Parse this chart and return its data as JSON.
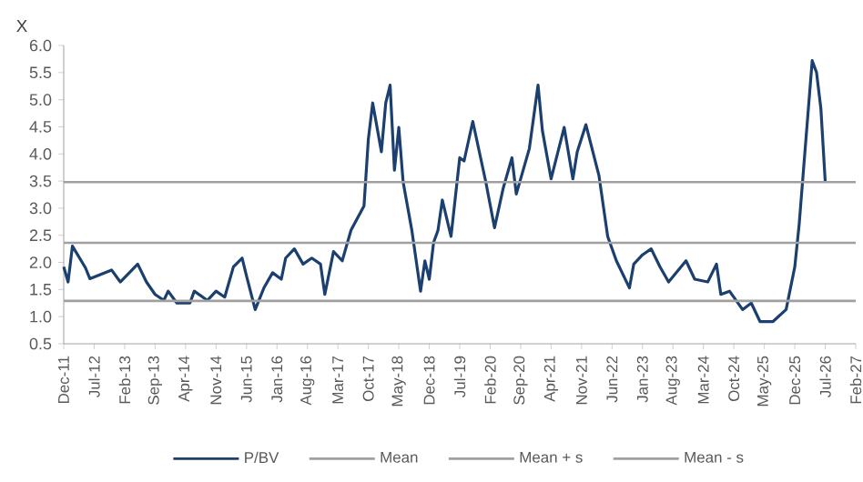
{
  "chart_data": {
    "type": "line",
    "ylabel": "X",
    "xlim": [
      "2011-12",
      "2027-02"
    ],
    "ylim": [
      0.5,
      6.0
    ],
    "yticks": [
      {
        "value": 0.5,
        "label": "0.5"
      },
      {
        "value": 1.0,
        "label": "1.0"
      },
      {
        "value": 1.5,
        "label": "1.5"
      },
      {
        "value": 2.0,
        "label": "2.0"
      },
      {
        "value": 2.5,
        "label": "2.5"
      },
      {
        "value": 3.0,
        "label": "3.0"
      },
      {
        "value": 3.5,
        "label": "3.5"
      },
      {
        "value": 4.0,
        "label": "4.0"
      },
      {
        "value": 4.5,
        "label": "4.5"
      },
      {
        "value": 5.0,
        "label": "5.0"
      },
      {
        "value": 5.5,
        "label": "5.5"
      },
      {
        "value": 6.0,
        "label": "6.0"
      }
    ],
    "xticks": [
      {
        "value": "2011-12",
        "label": "Dec-11"
      },
      {
        "value": "2012-07",
        "label": "Jul-12"
      },
      {
        "value": "2013-02",
        "label": "Feb-13"
      },
      {
        "value": "2013-09",
        "label": "Sep-13"
      },
      {
        "value": "2014-04",
        "label": "Apr-14"
      },
      {
        "value": "2014-11",
        "label": "Nov-14"
      },
      {
        "value": "2015-06",
        "label": "Jun-15"
      },
      {
        "value": "2016-01",
        "label": "Jan-16"
      },
      {
        "value": "2016-08",
        "label": "Aug-16"
      },
      {
        "value": "2017-03",
        "label": "Mar-17"
      },
      {
        "value": "2017-10",
        "label": "Oct-17"
      },
      {
        "value": "2018-05",
        "label": "May-18"
      },
      {
        "value": "2018-12",
        "label": "Dec-18"
      },
      {
        "value": "2019-07",
        "label": "Jul-19"
      },
      {
        "value": "2020-02",
        "label": "Feb-20"
      },
      {
        "value": "2020-09",
        "label": "Sep-20"
      },
      {
        "value": "2021-04",
        "label": "Apr-21"
      },
      {
        "value": "2021-11",
        "label": "Nov-21"
      },
      {
        "value": "2022-06",
        "label": "Jun-22"
      },
      {
        "value": "2023-01",
        "label": "Jan-23"
      },
      {
        "value": "2023-08",
        "label": "Aug-23"
      },
      {
        "value": "2024-03",
        "label": "Mar-24"
      },
      {
        "value": "2024-10",
        "label": "Oct-24"
      },
      {
        "value": "2025-05",
        "label": "May-25"
      },
      {
        "value": "2025-12",
        "label": "Dec-25"
      },
      {
        "value": "2026-07",
        "label": "Jul-26"
      },
      {
        "value": "2027-02",
        "label": "Feb-27"
      }
    ],
    "grid": false,
    "legend": "bottom",
    "marker": "none",
    "line_style": "solid",
    "series": [
      {
        "name": "P/BV",
        "color": "#1b3f6e",
        "x": [
          "2011-12",
          "2012-01",
          "2012-02",
          "2012-05",
          "2012-06",
          "2012-11",
          "2013-01",
          "2013-05",
          "2013-07",
          "2013-09",
          "2013-11",
          "2013-12",
          "2014-02",
          "2014-05",
          "2014-06",
          "2014-09",
          "2014-11",
          "2015-01",
          "2015-03",
          "2015-05",
          "2015-06",
          "2015-08",
          "2015-10",
          "2015-12",
          "2016-02",
          "2016-03",
          "2016-05",
          "2016-07",
          "2016-09",
          "2016-11",
          "2016-12",
          "2017-02",
          "2017-04",
          "2017-06",
          "2017-09",
          "2017-10",
          "2017-11",
          "2018-01",
          "2018-02",
          "2018-03",
          "2018-04",
          "2018-05",
          "2018-06",
          "2018-08",
          "2018-10",
          "2018-11",
          "2018-12",
          "2019-01",
          "2019-02",
          "2019-03",
          "2019-05",
          "2019-07",
          "2019-08",
          "2019-10",
          "2020-01",
          "2020-03",
          "2020-05",
          "2020-07",
          "2020-08",
          "2020-11",
          "2021-01",
          "2021-02",
          "2021-04",
          "2021-07",
          "2021-09",
          "2021-10",
          "2021-12",
          "2022-03",
          "2022-05",
          "2022-07",
          "2022-10",
          "2022-11",
          "2023-01",
          "2023-03",
          "2023-05",
          "2023-07",
          "2023-11",
          "2024-01",
          "2024-04",
          "2024-06",
          "2024-07",
          "2024-09",
          "2024-12",
          "2025-02",
          "2025-04",
          "2025-07",
          "2025-10",
          "2025-12",
          "2026-01",
          "2026-02",
          "2026-04",
          "2026-05",
          "2026-06",
          "2026-07"
        ],
        "values": [
          1.92,
          1.64,
          2.3,
          1.9,
          1.7,
          1.86,
          1.64,
          1.97,
          1.64,
          1.41,
          1.3,
          1.47,
          1.25,
          1.25,
          1.47,
          1.3,
          1.47,
          1.36,
          1.92,
          2.08,
          1.75,
          1.13,
          1.53,
          1.81,
          1.69,
          2.08,
          2.25,
          1.97,
          2.08,
          1.97,
          1.41,
          2.2,
          2.03,
          2.59,
          3.04,
          4.27,
          4.94,
          4.04,
          4.94,
          5.27,
          3.7,
          4.49,
          3.48,
          2.59,
          1.47,
          2.03,
          1.69,
          2.37,
          2.59,
          3.15,
          2.48,
          3.93,
          3.87,
          4.6,
          3.48,
          2.64,
          3.37,
          3.93,
          3.26,
          4.1,
          5.27,
          4.43,
          3.54,
          4.49,
          3.54,
          4.04,
          4.54,
          3.6,
          2.48,
          2.03,
          1.53,
          1.97,
          2.14,
          2.25,
          1.92,
          1.64,
          2.03,
          1.69,
          1.64,
          1.97,
          1.41,
          1.47,
          1.13,
          1.25,
          0.91,
          0.91,
          1.13,
          1.92,
          2.7,
          3.71,
          5.72,
          5.5,
          4.83,
          3.48
        ]
      },
      {
        "name": "Mean",
        "color": "#a0a0a0",
        "x": [
          "2011-12",
          "2027-02"
        ],
        "values": [
          2.36,
          2.36
        ]
      },
      {
        "name": "Mean + s",
        "color": "#a0a0a0",
        "x": [
          "2011-12",
          "2027-02"
        ],
        "values": [
          3.48,
          3.48
        ]
      },
      {
        "name": "Mean - s",
        "color": "#a0a0a0",
        "x": [
          "2011-12",
          "2027-02"
        ],
        "values": [
          1.29,
          1.29
        ]
      }
    ]
  }
}
